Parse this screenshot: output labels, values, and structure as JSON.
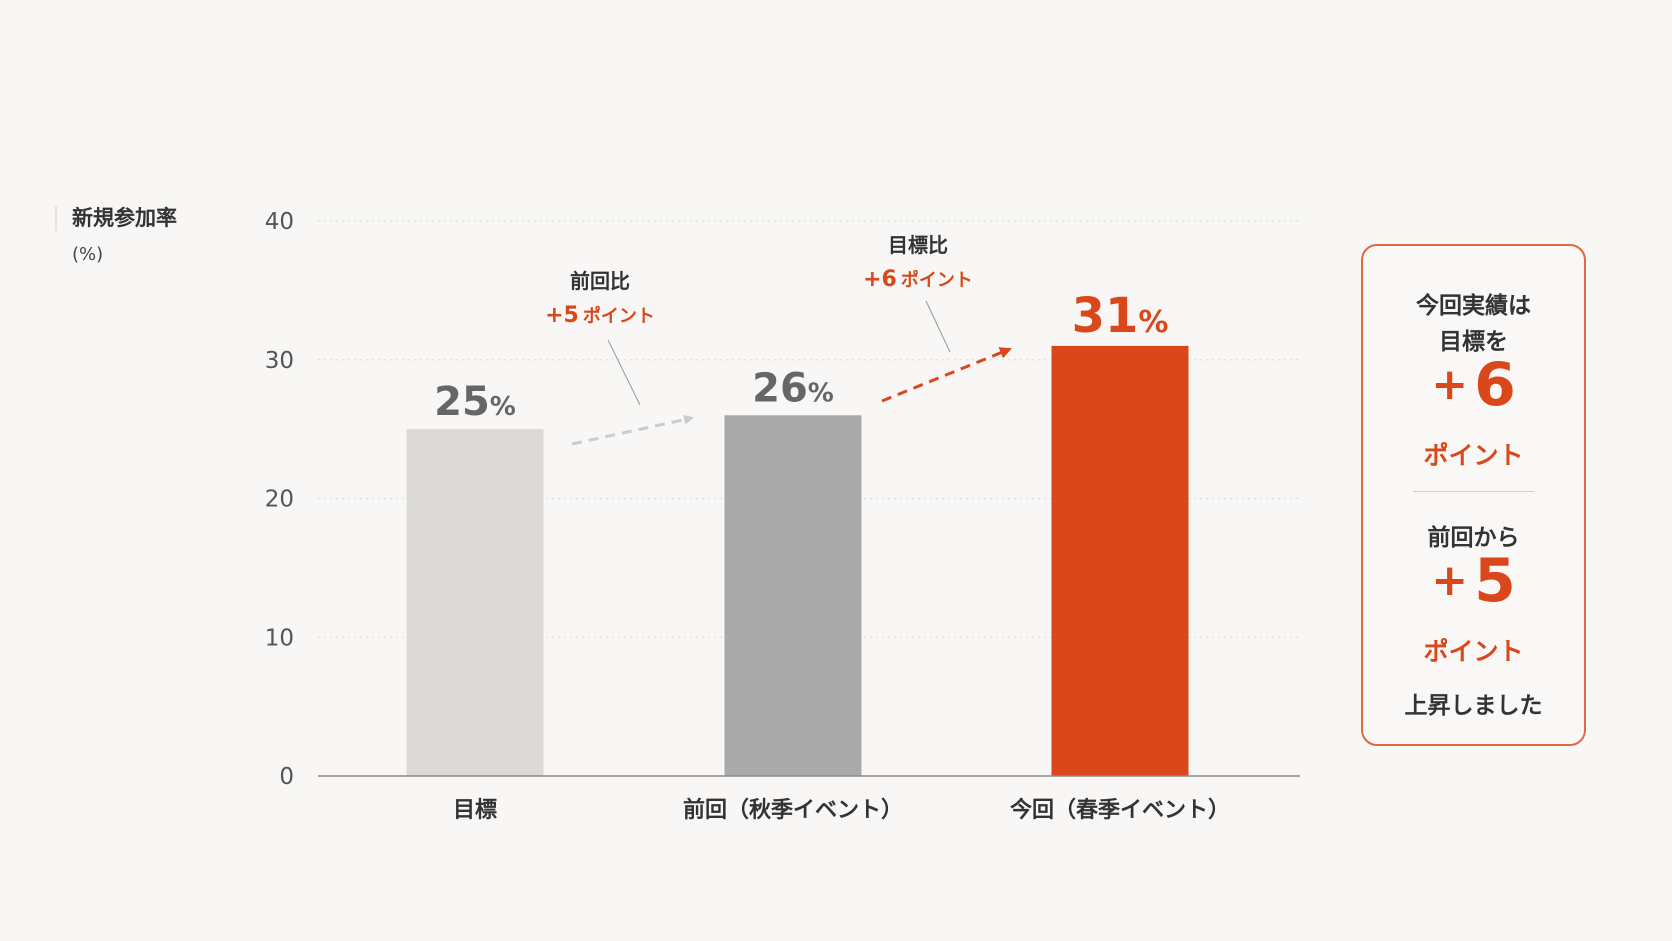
{
  "chart_data": {
    "type": "bar",
    "ylabel": "新規参加率",
    "yunit": "(%)",
    "ylim": [
      0,
      40
    ],
    "yticks": [
      0,
      10,
      20,
      30,
      40
    ],
    "grid": true,
    "categories": [
      "目標",
      "前回（秋季イベント）",
      "今回（春季イベント）"
    ],
    "values": [
      25,
      26,
      31
    ],
    "value_labels": [
      "25",
      "26",
      "31"
    ],
    "value_suffix": "%",
    "bar_colors": [
      "#dcdad7",
      "#aaaaaa",
      "#d9471a"
    ],
    "annotations": [
      {
        "title": "前回比",
        "delta": "+5",
        "unit": "ポイント"
      },
      {
        "title": "目標比",
        "delta": "+6",
        "unit": "ポイント"
      }
    ]
  },
  "summary": {
    "line1": "今回実績は",
    "line2": "目標を",
    "delta1_plus": "+",
    "delta1_num": "6",
    "delta1_unit": "ポイント",
    "line3": "前回から",
    "delta2_plus": "+",
    "delta2_num": "5",
    "delta2_unit": "ポイント",
    "line4": "上昇しました"
  },
  "colors": {
    "accent": "#d9471a",
    "text": "#333333",
    "axis": "#555555",
    "grid": "#d8d8d8",
    "arrow_gray": "#cccccc"
  }
}
